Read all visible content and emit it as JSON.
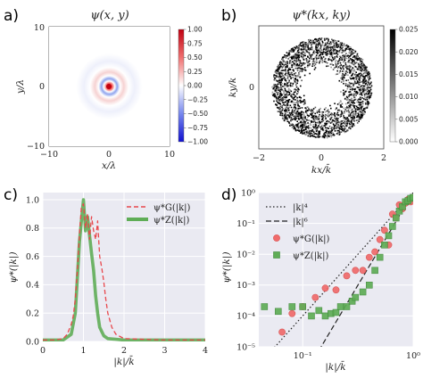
{
  "panels": {
    "a": {
      "letter": "a)",
      "title": "ψ(x, y)",
      "xlabel": "x/λ",
      "ylabel": "y/λ",
      "xticks": [
        "−10",
        "0",
        "10"
      ],
      "yticks": [
        "10",
        "0",
        "−10"
      ],
      "colorbar_ticks": [
        "1.00",
        "0.75",
        "0.50",
        "0.25",
        "0.00",
        "−0.25",
        "−0.50",
        "−0.75",
        "−1.00"
      ],
      "colors": {
        "pos": "#d7191c",
        "neg": "#2c4fd6",
        "zero": "#ffffff"
      }
    },
    "b": {
      "letter": "b)",
      "title": "ψ*(kx, ky)",
      "xlabel": "kx/k̄",
      "ylabel": "ky/k",
      "xticks": [
        "−2",
        "0",
        "2"
      ],
      "yticks": [
        "0"
      ],
      "colorbar_ticks": [
        "0.025",
        "0.020",
        "0.015",
        "0.010",
        "0.005",
        "0.000"
      ]
    },
    "c": {
      "letter": "c)",
      "ylabel": "ψ*(|k|)",
      "xlabel": "|k|/k̄",
      "xticks": [
        "0",
        "1",
        "2",
        "3",
        "4"
      ],
      "yticks": [
        "0.0",
        "0.2",
        "0.4",
        "0.6",
        "0.8",
        "1.0"
      ],
      "legend": [
        "ψ*G(|k|)",
        "ψ*Z(|k|)"
      ]
    },
    "d": {
      "letter": "d)",
      "ylabel": "ψ*(|k|)",
      "xlabel": "|k|/k̄",
      "xticks": [
        "10⁻¹",
        "10⁰"
      ],
      "yticks": [
        "10⁰",
        "10⁻¹",
        "10⁻²",
        "10⁻³",
        "10⁻⁴",
        "10⁻⁵"
      ],
      "legend": [
        "|k|⁴",
        "|k|⁶",
        "ψ*G(|k|)",
        "ψ*Z(|k|)"
      ]
    }
  },
  "chart_data": [
    {
      "type": "heatmap",
      "panel": "a",
      "title": "ψ(x, y)",
      "xlabel": "x/λ",
      "ylabel": "y/λ",
      "xlim": [
        -10,
        10
      ],
      "ylim": [
        -10,
        10
      ],
      "colorbar_range": [
        -1.0,
        1.0
      ],
      "description_values": {
        "center_peak": 1.0,
        "ring_min": -0.3
      }
    },
    {
      "type": "heatmap",
      "panel": "b",
      "title": "ψ*(kx, ky)",
      "xlabel": "kx/k̄",
      "ylabel": "ky/k",
      "xlim": [
        -2,
        2
      ],
      "ylim": [
        -2,
        2
      ],
      "colorbar_range": [
        0.0,
        0.025
      ],
      "ring_inner_radius": 0.6,
      "ring_outer_radius": 1.6
    },
    {
      "type": "line",
      "panel": "c",
      "xlabel": "|k|/k̄",
      "ylabel": "ψ*(|k|)",
      "xlim": [
        0,
        4
      ],
      "ylim": [
        0,
        1.05
      ],
      "series": [
        {
          "name": "ψ*G(|k|)",
          "style": "dashed",
          "color": "#e8474c",
          "x": [
            0,
            0.3,
            0.5,
            0.6,
            0.7,
            0.75,
            0.8,
            0.85,
            0.9,
            0.95,
            1.0,
            1.05,
            1.1,
            1.15,
            1.2,
            1.25,
            1.3,
            1.35,
            1.4,
            1.45,
            1.5,
            1.55,
            1.6,
            1.7,
            1.8,
            2.0,
            3.0,
            4.0
          ],
          "values": [
            0.01,
            0.01,
            0.02,
            0.05,
            0.12,
            0.18,
            0.3,
            0.5,
            0.75,
            0.95,
            0.97,
            0.8,
            0.9,
            0.72,
            0.88,
            0.78,
            0.72,
            0.85,
            0.6,
            0.52,
            0.42,
            0.3,
            0.2,
            0.1,
            0.05,
            0.02,
            0.01,
            0.01
          ]
        },
        {
          "name": "ψ*Z(|k|)",
          "style": "solid",
          "color": "#5fad56",
          "x": [
            0,
            0.5,
            0.7,
            0.8,
            0.85,
            0.9,
            0.95,
            1.0,
            1.05,
            1.1,
            1.15,
            1.2,
            1.25,
            1.3,
            1.35,
            1.4,
            1.5,
            1.6,
            2.0,
            3.0,
            4.0
          ],
          "values": [
            0.01,
            0.01,
            0.05,
            0.2,
            0.45,
            0.7,
            0.85,
            1.0,
            0.78,
            0.88,
            0.75,
            0.62,
            0.5,
            0.32,
            0.2,
            0.1,
            0.04,
            0.02,
            0.01,
            0.01,
            0.01
          ]
        }
      ]
    },
    {
      "type": "scatter",
      "panel": "d",
      "xscale": "log",
      "yscale": "log",
      "xlabel": "|k|/k̄",
      "ylabel": "ψ*(|k|)",
      "xlim": [
        0.04,
        1.0
      ],
      "ylim": [
        1e-05,
        1.0
      ],
      "series": [
        {
          "name": "|k|⁴",
          "style": "dotted",
          "color": "#222222",
          "x": [
            0.05,
            1.0
          ],
          "values": [
            6.3e-06,
            1.0
          ]
        },
        {
          "name": "|k|⁶",
          "style": "dashed",
          "color": "#222222",
          "x": [
            0.14,
            1.0
          ],
          "values": [
            7.5e-06,
            1.0
          ]
        },
        {
          "name": "ψ*G(|k|)",
          "marker": "circle",
          "color": "#f06b6b",
          "x": [
            0.065,
            0.08,
            0.1,
            0.13,
            0.16,
            0.2,
            0.25,
            0.3,
            0.35,
            0.4,
            0.45,
            0.5,
            0.55,
            0.6,
            0.65,
            0.7,
            0.75,
            0.8,
            0.85,
            0.9,
            0.95,
            1.0
          ],
          "values": [
            3e-05,
            0.00012,
            0.0002,
            0.0004,
            0.0008,
            0.0007,
            0.002,
            0.003,
            0.003,
            0.008,
            0.012,
            0.03,
            0.06,
            0.02,
            0.2,
            0.15,
            0.4,
            0.3,
            0.45,
            0.6,
            0.5,
            0.7
          ]
        },
        {
          "name": "ψ*Z(|k|)",
          "marker": "square",
          "color": "#5fad56",
          "x": [
            0.045,
            0.06,
            0.08,
            0.1,
            0.12,
            0.14,
            0.16,
            0.18,
            0.2,
            0.22,
            0.25,
            0.28,
            0.3,
            0.35,
            0.4,
            0.45,
            0.5,
            0.55,
            0.6,
            0.65,
            0.7,
            0.75,
            0.8,
            0.85,
            0.9,
            0.95,
            1.0
          ],
          "values": [
            0.0002,
            0.00014,
            0.0002,
            0.0002,
            0.0001,
            0.00015,
            0.0001,
            0.00012,
            0.00013,
            0.0002,
            0.0002,
            0.0003,
            0.0004,
            0.0006,
            0.001,
            0.003,
            0.008,
            0.02,
            0.04,
            0.08,
            0.15,
            0.25,
            0.35,
            0.5,
            0.55,
            0.65,
            0.7
          ]
        }
      ]
    }
  ]
}
